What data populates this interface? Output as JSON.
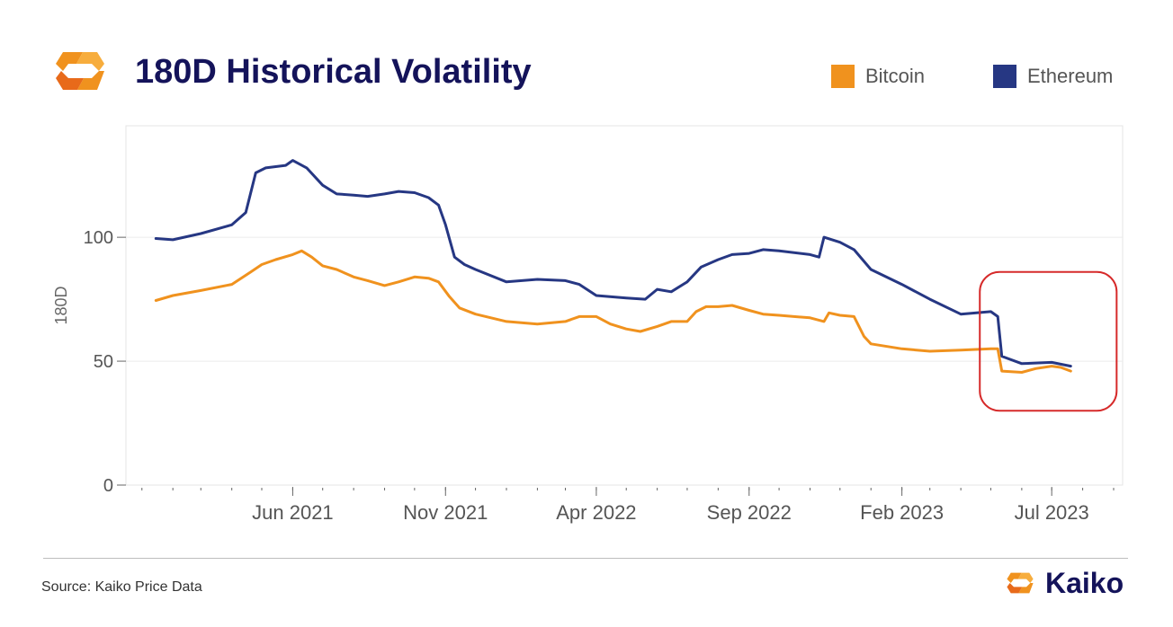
{
  "header": {
    "title": "180D Historical Volatility"
  },
  "legend": [
    {
      "name": "Bitcoin",
      "color": "#f0921e"
    },
    {
      "name": "Ethereum",
      "color": "#263783"
    }
  ],
  "footer": {
    "source": "Source: Kaiko Price Data",
    "brand": "Kaiko"
  },
  "chart_data": {
    "type": "line",
    "title": "180D Historical Volatility",
    "xlabel": "",
    "ylabel": "180D",
    "ylim": [
      0,
      145
    ],
    "xlim": [
      "2020-12-16",
      "2023-09-10"
    ],
    "yticks": [
      0,
      50,
      100
    ],
    "xticks": [
      {
        "date": "2021-06-01",
        "label": "Jun 2021"
      },
      {
        "date": "2021-11-01",
        "label": "Nov 2021"
      },
      {
        "date": "2022-04-01",
        "label": "Apr 2022"
      },
      {
        "date": "2022-09-01",
        "label": "Sep 2022"
      },
      {
        "date": "2023-02-01",
        "label": "Feb 2023"
      },
      {
        "date": "2023-07-01",
        "label": "Jul 2023"
      }
    ],
    "grid": true,
    "legend_position": "top-right",
    "annotation": "highlight box around recent drop (May–Jul 2023)",
    "series": [
      {
        "name": "Bitcoin",
        "color": "#f0921e",
        "points": [
          [
            "2021-01-15",
            74.5
          ],
          [
            "2021-02-01",
            76.5
          ],
          [
            "2021-03-01",
            78.5
          ],
          [
            "2021-04-01",
            81
          ],
          [
            "2021-04-20",
            86
          ],
          [
            "2021-05-01",
            89
          ],
          [
            "2021-05-15",
            91
          ],
          [
            "2021-06-01",
            93
          ],
          [
            "2021-06-10",
            94.5
          ],
          [
            "2021-06-20",
            92
          ],
          [
            "2021-07-01",
            88.5
          ],
          [
            "2021-07-15",
            87
          ],
          [
            "2021-08-01",
            84
          ],
          [
            "2021-08-15",
            82.5
          ],
          [
            "2021-09-01",
            80.5
          ],
          [
            "2021-09-15",
            82
          ],
          [
            "2021-10-01",
            84
          ],
          [
            "2021-10-15",
            83.5
          ],
          [
            "2021-10-25",
            82
          ],
          [
            "2021-11-05",
            76
          ],
          [
            "2021-11-15",
            71.5
          ],
          [
            "2021-12-01",
            69
          ],
          [
            "2022-01-01",
            66
          ],
          [
            "2022-02-01",
            65
          ],
          [
            "2022-03-01",
            66
          ],
          [
            "2022-03-15",
            68
          ],
          [
            "2022-04-01",
            68
          ],
          [
            "2022-04-15",
            65
          ],
          [
            "2022-05-01",
            63
          ],
          [
            "2022-05-15",
            62
          ],
          [
            "2022-06-01",
            64
          ],
          [
            "2022-06-15",
            66
          ],
          [
            "2022-07-01",
            66
          ],
          [
            "2022-07-10",
            70
          ],
          [
            "2022-07-20",
            72
          ],
          [
            "2022-08-01",
            72
          ],
          [
            "2022-08-15",
            72.5
          ],
          [
            "2022-09-01",
            70.5
          ],
          [
            "2022-09-15",
            69
          ],
          [
            "2022-10-01",
            68.5
          ],
          [
            "2022-11-01",
            67.5
          ],
          [
            "2022-11-15",
            66
          ],
          [
            "2022-11-20",
            69.5
          ],
          [
            "2022-12-01",
            68.5
          ],
          [
            "2022-12-15",
            68
          ],
          [
            "2022-12-25",
            60
          ],
          [
            "2023-01-01",
            57
          ],
          [
            "2023-02-01",
            55
          ],
          [
            "2023-03-01",
            54
          ],
          [
            "2023-04-01",
            54.5
          ],
          [
            "2023-05-01",
            55
          ],
          [
            "2023-05-08",
            55
          ],
          [
            "2023-05-12",
            46
          ],
          [
            "2023-06-01",
            45.5
          ],
          [
            "2023-06-15",
            47
          ],
          [
            "2023-07-01",
            48
          ],
          [
            "2023-07-10",
            47.5
          ],
          [
            "2023-07-20",
            46
          ]
        ]
      },
      {
        "name": "Ethereum",
        "color": "#263783",
        "points": [
          [
            "2021-01-15",
            99.5
          ],
          [
            "2021-02-01",
            99
          ],
          [
            "2021-03-01",
            101.5
          ],
          [
            "2021-04-01",
            105
          ],
          [
            "2021-04-15",
            110
          ],
          [
            "2021-04-25",
            126
          ],
          [
            "2021-05-05",
            128
          ],
          [
            "2021-05-25",
            129
          ],
          [
            "2021-06-01",
            131
          ],
          [
            "2021-06-15",
            128
          ],
          [
            "2021-07-01",
            121
          ],
          [
            "2021-07-15",
            117.5
          ],
          [
            "2021-08-01",
            117
          ],
          [
            "2021-08-15",
            116.5
          ],
          [
            "2021-09-01",
            117.5
          ],
          [
            "2021-09-15",
            118.5
          ],
          [
            "2021-10-01",
            118
          ],
          [
            "2021-10-15",
            116
          ],
          [
            "2021-10-25",
            113
          ],
          [
            "2021-11-01",
            105
          ],
          [
            "2021-11-10",
            92
          ],
          [
            "2021-11-20",
            89
          ],
          [
            "2021-12-01",
            87
          ],
          [
            "2022-01-01",
            82
          ],
          [
            "2022-02-01",
            83
          ],
          [
            "2022-03-01",
            82.5
          ],
          [
            "2022-03-15",
            81
          ],
          [
            "2022-04-01",
            76.5
          ],
          [
            "2022-05-01",
            75.5
          ],
          [
            "2022-05-20",
            75
          ],
          [
            "2022-06-01",
            79
          ],
          [
            "2022-06-15",
            78
          ],
          [
            "2022-07-01",
            82
          ],
          [
            "2022-07-15",
            88
          ],
          [
            "2022-08-01",
            91
          ],
          [
            "2022-08-15",
            93
          ],
          [
            "2022-09-01",
            93.5
          ],
          [
            "2022-09-15",
            95
          ],
          [
            "2022-10-01",
            94.5
          ],
          [
            "2022-11-01",
            93
          ],
          [
            "2022-11-10",
            92
          ],
          [
            "2022-11-15",
            100
          ],
          [
            "2022-12-01",
            98
          ],
          [
            "2022-12-15",
            95
          ],
          [
            "2023-01-01",
            87
          ],
          [
            "2023-02-01",
            81
          ],
          [
            "2023-03-01",
            75
          ],
          [
            "2023-04-01",
            69
          ],
          [
            "2023-05-01",
            70
          ],
          [
            "2023-05-08",
            68
          ],
          [
            "2023-05-12",
            52
          ],
          [
            "2023-06-01",
            49
          ],
          [
            "2023-07-01",
            49.5
          ],
          [
            "2023-07-20",
            48
          ]
        ]
      }
    ]
  }
}
